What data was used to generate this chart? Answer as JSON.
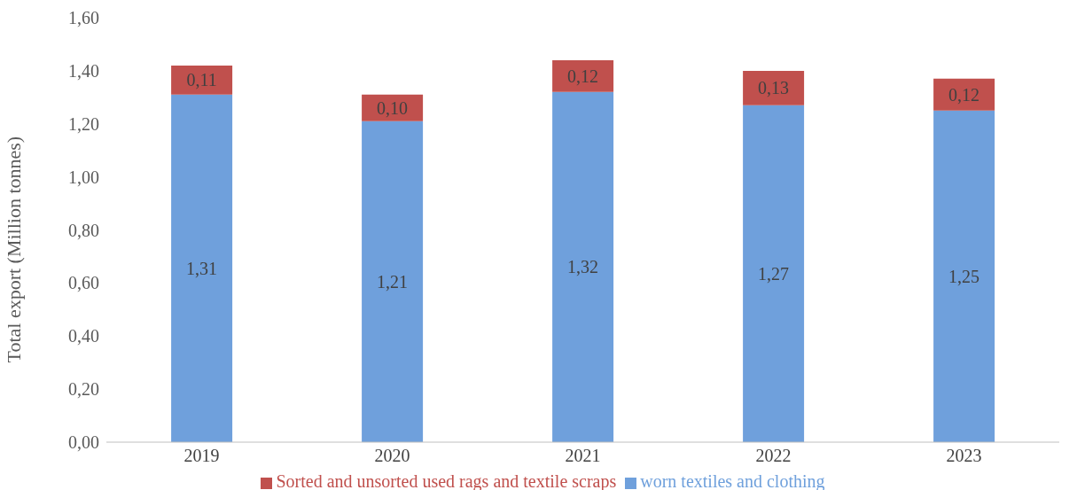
{
  "chart_data": {
    "type": "bar",
    "stacked": true,
    "ylabel": "Total export (Million tonnes)",
    "categories": [
      "2019",
      "2020",
      "2021",
      "2022",
      "2023"
    ],
    "series": [
      {
        "name": "worn textiles and clothing",
        "color": "#6fa0dc",
        "values": [
          1.31,
          1.21,
          1.32,
          1.27,
          1.25
        ],
        "value_labels": [
          "1,31",
          "1,21",
          "1,32",
          "1,27",
          "1,25"
        ]
      },
      {
        "name": "Sorted and unsorted used rags and textile scraps",
        "color": "#c0504d",
        "values": [
          0.11,
          0.1,
          0.12,
          0.13,
          0.12
        ],
        "value_labels": [
          "0,11",
          "0,10",
          "0,12",
          "0,13",
          "0,12"
        ]
      }
    ],
    "ylim": [
      0,
      1.6
    ],
    "yticks": [
      {
        "value": 0,
        "label": "0,00"
      },
      {
        "value": 0.2,
        "label": "0,20"
      },
      {
        "value": 0.4,
        "label": "0,40"
      },
      {
        "value": 0.6,
        "label": "0,60"
      },
      {
        "value": 0.8,
        "label": "0,80"
      },
      {
        "value": 1.0,
        "label": "1,00"
      },
      {
        "value": 1.2,
        "label": "1,20"
      },
      {
        "value": 1.4,
        "label": "1,40"
      },
      {
        "value": 1.6,
        "label": "1,60"
      }
    ],
    "grid": false,
    "legend": "bottom"
  }
}
